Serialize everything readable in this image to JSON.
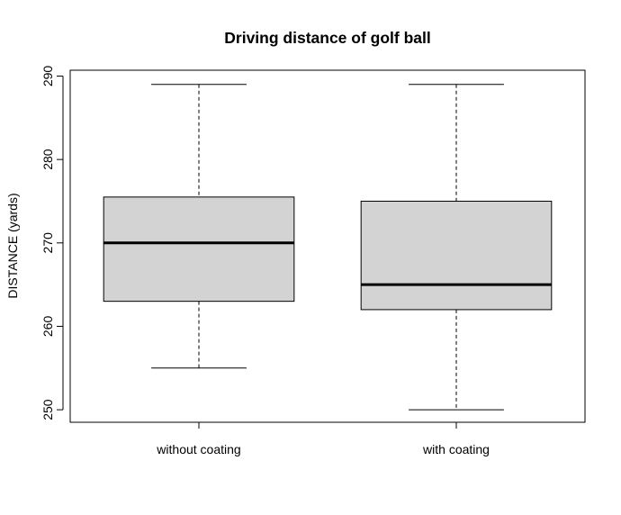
{
  "chart_data": {
    "type": "boxplot",
    "title": "Driving distance of golf ball",
    "xlabel": "",
    "ylabel": "DISTANCE (yards)",
    "ylim": [
      248.5,
      290.7
    ],
    "yticks": [
      250,
      260,
      270,
      280,
      290
    ],
    "ytick_labels": [
      "250",
      "260",
      "270",
      "280",
      "290"
    ],
    "categories": [
      "without coating",
      "with coating"
    ],
    "boxes": [
      {
        "category": "without coating",
        "min": 255,
        "q1": 263,
        "median": 270,
        "q3": 275.5,
        "max": 289
      },
      {
        "category": "with coating",
        "min": 250,
        "q1": 262,
        "median": 265,
        "q3": 275,
        "max": 289
      }
    ],
    "box_fill": "#d3d3d3",
    "line_color": "#000000",
    "grid": false,
    "legend": "none"
  }
}
